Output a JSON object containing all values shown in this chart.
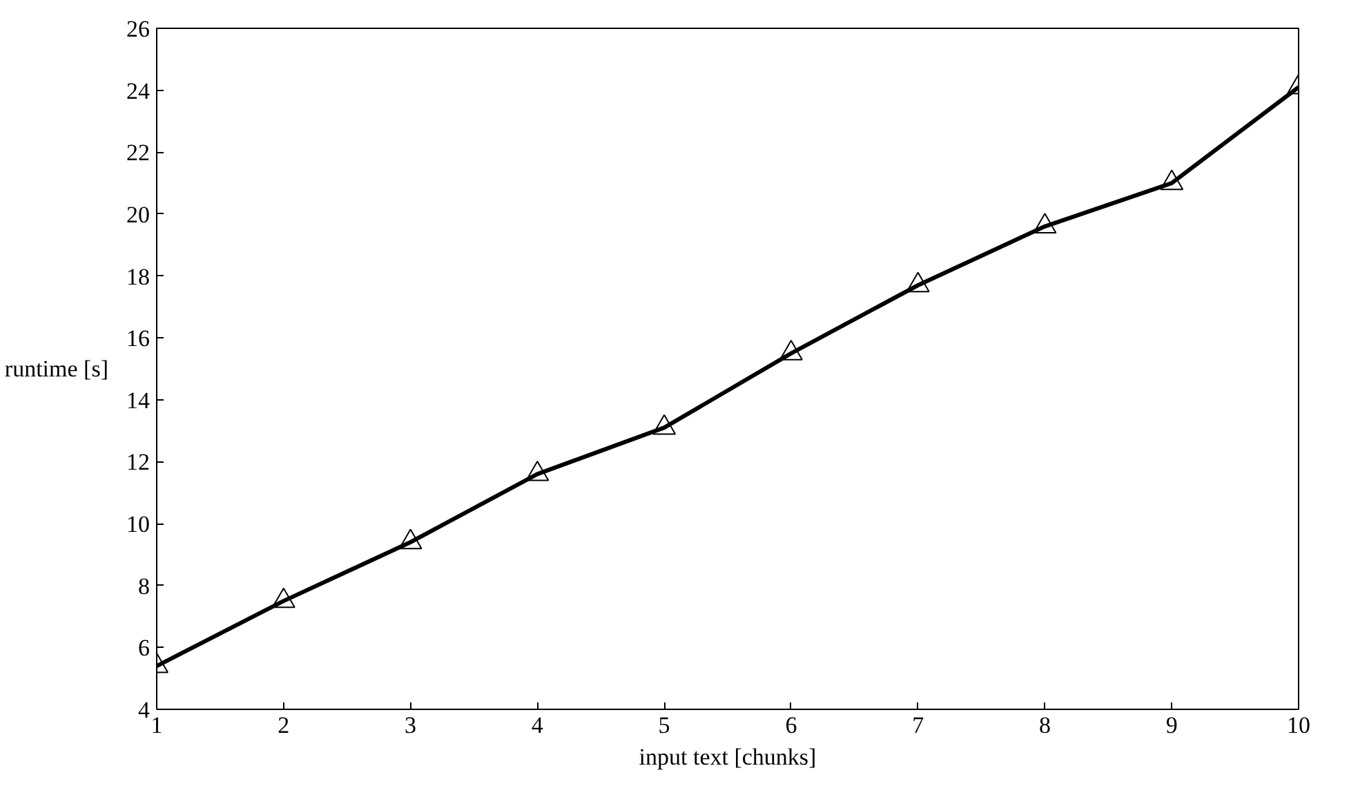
{
  "chart_data": {
    "type": "line",
    "xlabel": "input text [chunks]",
    "ylabel": "runtime [s]",
    "x": [
      1,
      2,
      3,
      4,
      5,
      6,
      7,
      8,
      9,
      10
    ],
    "series": [
      {
        "color": "#000000",
        "values": [
          5.4,
          7.5,
          9.4,
          11.6,
          13.1,
          15.5,
          17.7,
          19.6,
          21.0,
          24.1
        ]
      }
    ],
    "xlim": [
      1,
      10
    ],
    "xticks": [
      1,
      2,
      3,
      4,
      5,
      6,
      7,
      8,
      9,
      10
    ],
    "ylim": [
      4,
      26
    ],
    "yticks": [
      4,
      6,
      8,
      10,
      12,
      14,
      16,
      18,
      20,
      22,
      24,
      26
    ],
    "grid": false,
    "marker": "triangle",
    "line_style": "solid"
  }
}
